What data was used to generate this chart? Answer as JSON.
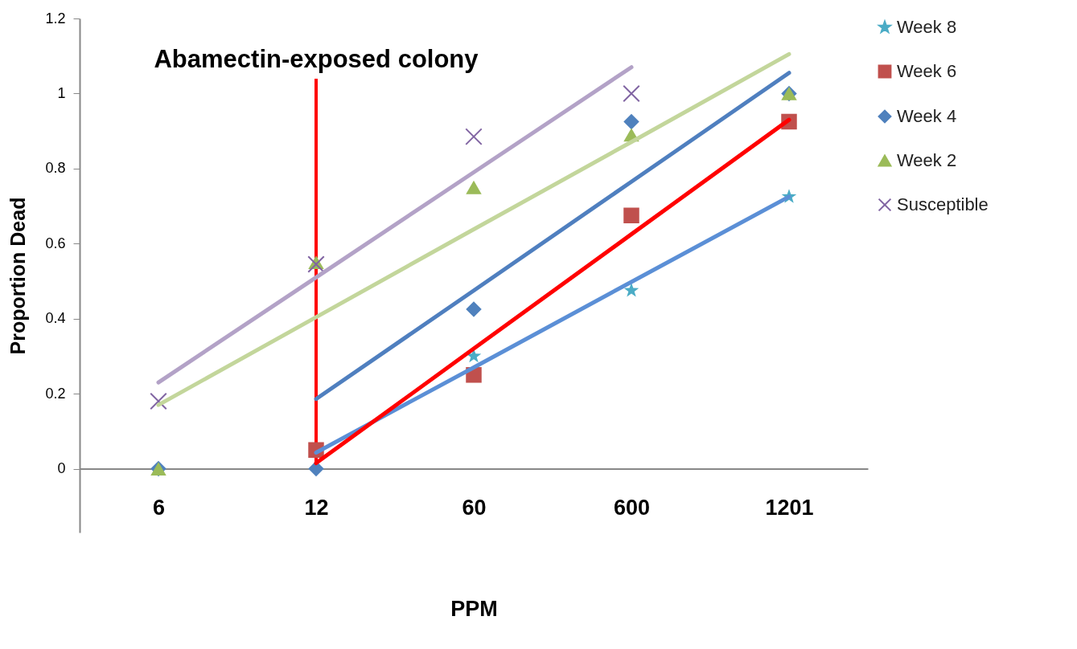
{
  "chart_data": {
    "type": "scatter",
    "xlabel": "PPM",
    "ylabel": "Proportion Dead",
    "categories": [
      "6",
      "12",
      "60",
      "600",
      "1201"
    ],
    "ylim": [
      -0.17,
      1.2
    ],
    "yticks": [
      0,
      0.2,
      0.4,
      0.6,
      0.8,
      1,
      1.2
    ],
    "legend": "right",
    "grid": false,
    "series": [
      {
        "name": "Week 8",
        "color": "#4bacc6",
        "marker": "star",
        "values": [
          null,
          null,
          0.3,
          0.475,
          0.725
        ]
      },
      {
        "name": "Week 6",
        "color": "#c0504d",
        "marker": "square",
        "values": [
          null,
          0.05,
          0.25,
          0.675,
          0.925
        ]
      },
      {
        "name": "Week 4",
        "color": "#4f81bd",
        "marker": "diamond",
        "values": [
          0,
          0,
          0.425,
          0.925,
          1
        ]
      },
      {
        "name": "Week 2",
        "color": "#9bbb59",
        "marker": "triangle",
        "values": [
          0,
          0.55,
          0.75,
          0.89,
          1
        ]
      },
      {
        "name": "Susceptible",
        "color": "#8064a2",
        "marker": "cross",
        "values": [
          0.18,
          0.545,
          0.885,
          1,
          null
        ]
      },
      {
        "type": "line",
        "color": "#5b8fd6",
        "values": [
          null,
          0.043,
          0.27,
          0.498,
          0.725
        ]
      },
      {
        "type": "line",
        "color": "#4f7fbf",
        "values": [
          null,
          0.186,
          0.475,
          0.765,
          1.055
        ]
      },
      {
        "type": "line",
        "color": "#ff0000",
        "values": [
          null,
          0.015,
          0.32,
          0.625,
          0.93
        ]
      },
      {
        "type": "line",
        "color": "#c3d69b",
        "values": [
          0.17,
          0.404,
          0.638,
          0.871,
          1.105
        ]
      },
      {
        "type": "line",
        "color": "#b3a2c7",
        "values": [
          0.23,
          0.51,
          0.79,
          1.07,
          null
        ]
      }
    ],
    "ref_lines": [
      {
        "axis": "x",
        "value": "12",
        "label": "Abamectin-exposed colony",
        "color": "#ff0000"
      }
    ]
  }
}
